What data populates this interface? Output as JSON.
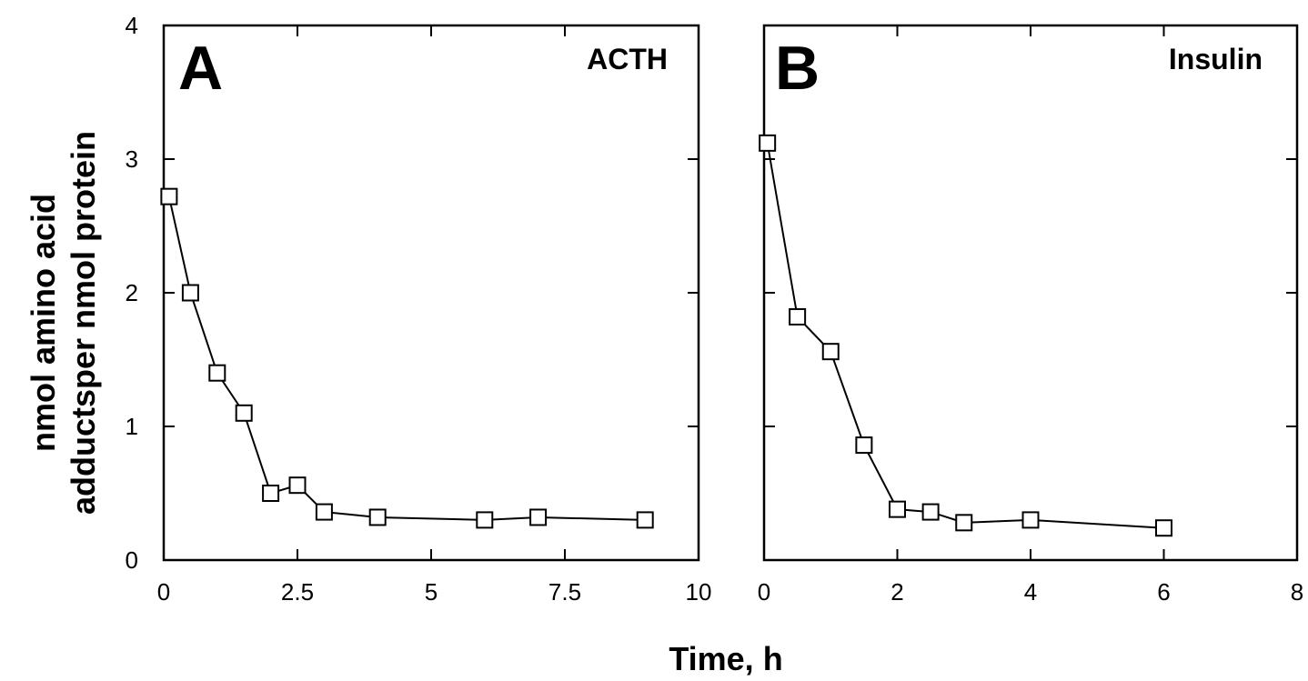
{
  "chart_data": [
    {
      "type": "line",
      "panel_letter": "A",
      "title": "ACTH",
      "xlim": [
        0,
        10
      ],
      "ylim": [
        0,
        4
      ],
      "x_ticks": [
        0,
        2.5,
        5,
        7.5,
        10
      ],
      "x_tick_labels": [
        "0",
        "2.5",
        "5",
        "7.5",
        "10"
      ],
      "y_ticks": [
        0,
        1,
        2,
        3,
        4
      ],
      "y_tick_labels": [
        "0",
        "1",
        "2",
        "3",
        "4"
      ],
      "grid": false,
      "marker": "open-square",
      "series": [
        {
          "x": [
            0.1,
            0.5,
            1.0,
            1.5,
            2.0,
            2.5,
            3.0,
            4.0,
            6.0,
            7.0,
            9.0
          ],
          "y": [
            2.72,
            2.0,
            1.4,
            1.1,
            0.5,
            0.56,
            0.36,
            0.32,
            0.3,
            0.32,
            0.3
          ]
        }
      ]
    },
    {
      "type": "line",
      "panel_letter": "B",
      "title": "Insulin",
      "xlim": [
        0,
        8
      ],
      "ylim": [
        0,
        4
      ],
      "x_ticks": [
        0,
        2,
        4,
        6,
        8
      ],
      "x_tick_labels": [
        "0",
        "2",
        "4",
        "6",
        "8"
      ],
      "y_ticks": [
        0,
        1,
        2,
        3,
        4
      ],
      "y_tick_labels": [],
      "grid": false,
      "marker": "open-square",
      "series": [
        {
          "x": [
            0.05,
            0.5,
            1.0,
            1.5,
            2.0,
            2.5,
            3.0,
            4.0,
            6.0
          ],
          "y": [
            3.12,
            1.82,
            1.56,
            0.86,
            0.38,
            0.36,
            0.28,
            0.3,
            0.24
          ]
        }
      ]
    }
  ],
  "shared_labels": {
    "ylabel_line1": "nmol amino acid",
    "ylabel_line2": "adductsper nmol protein",
    "xlabel": "Time, h"
  }
}
